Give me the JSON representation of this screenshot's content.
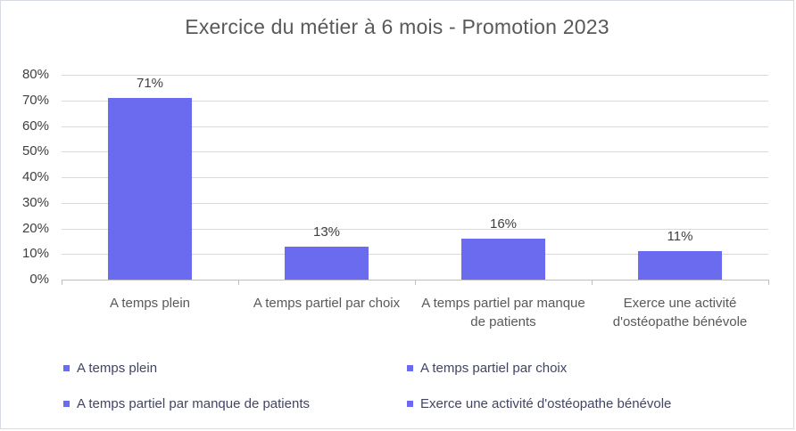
{
  "chart_data": {
    "type": "bar",
    "title": "Exercice du métier à 6 mois - Promotion 2023",
    "categories": [
      "A temps plein",
      "A temps partiel par choix",
      "A temps partiel par manque de patients",
      "Exerce une activité d'ostéopathe bénévole"
    ],
    "values": [
      71,
      13,
      16,
      11
    ],
    "data_labels": [
      "71%",
      "13%",
      "16%",
      "11%"
    ],
    "y_tick_labels": [
      "0%",
      "10%",
      "20%",
      "30%",
      "40%",
      "50%",
      "60%",
      "70%",
      "80%"
    ],
    "y_tick_values": [
      0,
      10,
      20,
      30,
      40,
      50,
      60,
      70,
      80
    ],
    "ylim": [
      0,
      80
    ],
    "grid": true,
    "legend_position": "bottom",
    "legend": [
      "A temps plein",
      "A temps partiel par choix",
      "A temps partiel par manque de patients",
      "Exerce une activité d'ostéopathe bénévole"
    ],
    "colors": {
      "bar": "#6b6bf0",
      "gridline": "#d9d9d9",
      "axis": "#bfbfbf",
      "title_text": "#595959",
      "tick_text": "#404040",
      "category_text": "#595959",
      "legend_text": "#414563",
      "value_label_text": "#404040"
    }
  }
}
